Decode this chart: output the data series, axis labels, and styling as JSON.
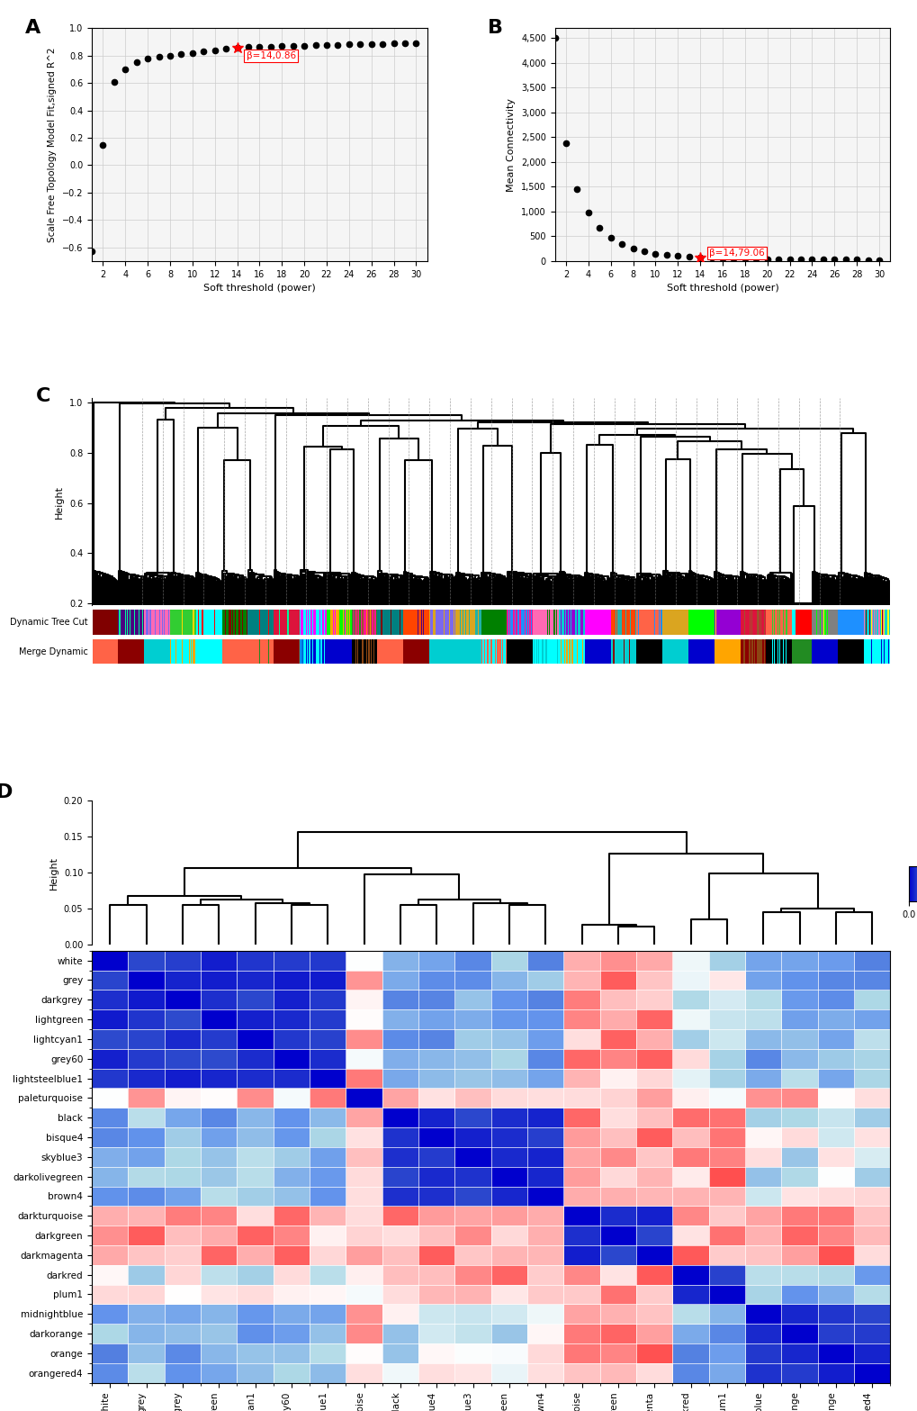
{
  "panel_A": {
    "x": [
      1,
      2,
      3,
      4,
      5,
      6,
      7,
      8,
      9,
      10,
      11,
      12,
      13,
      14,
      15,
      16,
      17,
      18,
      19,
      20,
      21,
      22,
      23,
      24,
      25,
      26,
      27,
      28,
      29,
      30
    ],
    "y": [
      -0.63,
      0.15,
      0.61,
      0.7,
      0.75,
      0.78,
      0.79,
      0.8,
      0.81,
      0.82,
      0.83,
      0.84,
      0.85,
      0.86,
      0.862,
      0.864,
      0.866,
      0.868,
      0.87,
      0.872,
      0.875,
      0.877,
      0.879,
      0.881,
      0.883,
      0.885,
      0.887,
      0.889,
      0.891,
      0.893
    ],
    "highlight_x": 14,
    "highlight_y": 0.86,
    "annotation": "β=14,0.86",
    "xlabel": "Soft threshold (power)",
    "ylabel": "Scale Free Topology Model Fit,signed R^2",
    "xlim": [
      1,
      31
    ],
    "ylim": [
      -0.7,
      1.0
    ],
    "xticks": [
      2,
      4,
      6,
      8,
      10,
      12,
      14,
      16,
      18,
      20,
      22,
      24,
      26,
      28,
      30
    ]
  },
  "panel_B": {
    "x": [
      1,
      2,
      3,
      4,
      5,
      6,
      7,
      8,
      9,
      10,
      11,
      12,
      13,
      14,
      15,
      16,
      17,
      18,
      19,
      20,
      21,
      22,
      23,
      24,
      25,
      26,
      27,
      28,
      29,
      30
    ],
    "y": [
      4500,
      2380,
      1460,
      980,
      670,
      470,
      340,
      250,
      190,
      150,
      120,
      100,
      88,
      79,
      68,
      60,
      54,
      49,
      45,
      42,
      39,
      36,
      34,
      32,
      30,
      28,
      26,
      25,
      24,
      23
    ],
    "highlight_x": 14,
    "highlight_y": 79.06,
    "annotation": "β=14,79.06",
    "xlabel": "Soft threshold (power)",
    "ylabel": "Mean Connectivity",
    "xlim": [
      1,
      31
    ],
    "ylim": [
      0,
      4700
    ],
    "yticks": [
      0,
      500,
      1000,
      1500,
      2000,
      2500,
      3000,
      3500,
      4000,
      4500
    ],
    "xticks": [
      2,
      4,
      6,
      8,
      10,
      12,
      14,
      16,
      18,
      20,
      22,
      24,
      26,
      28,
      30
    ]
  },
  "panel_D": {
    "modules": [
      "darkgreen",
      "darkmagenta",
      "darkturquoise",
      "darkred",
      "plum1",
      "midnightblue",
      "darkorange",
      "orange",
      "orangered4",
      "darkgrey",
      "lightgreen",
      "lightcyan1",
      "grey60",
      "lightsteelblue1",
      "white",
      "grey",
      "skyblue3",
      "darkolivegreen",
      "brown4",
      "black",
      "bisque4",
      "paleturquoise"
    ],
    "module_colors": [
      "#006400",
      "#8B008B",
      "#00CED1",
      "#8B0000",
      "#DDA0DD",
      "#191970",
      "#FF8C00",
      "#FFA500",
      "#8B2500",
      "#A9A9A9",
      "#90EE90",
      "#E0FFFF",
      "#808080",
      "#B0C4DE",
      "#FFFFFF",
      "#808080",
      "#87CEEB",
      "#556B2F",
      "#8B2252",
      "#000000",
      "#CDB79E",
      "#AFEEEE"
    ],
    "background_color": "#f5f5f5",
    "grid_color": "#cccccc"
  }
}
